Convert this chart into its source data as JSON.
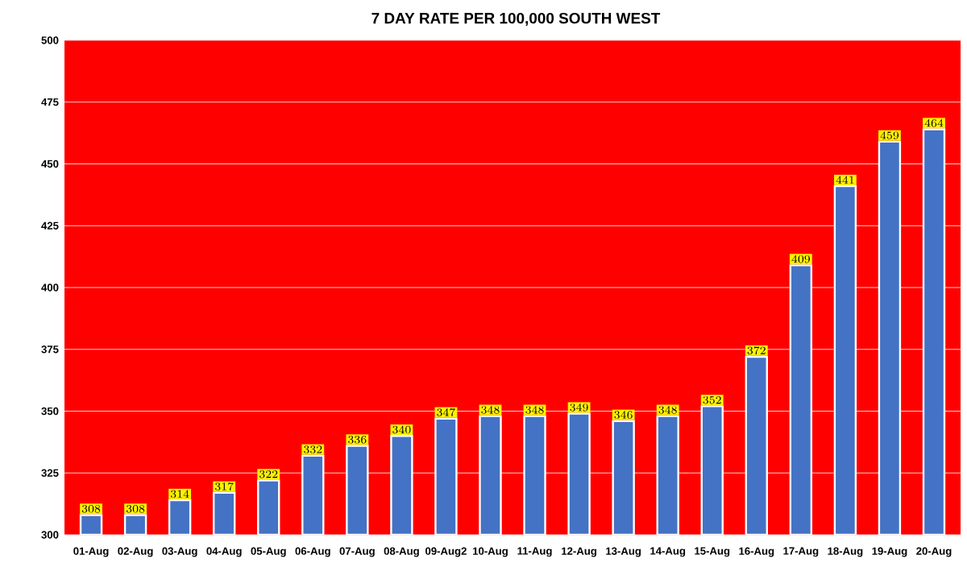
{
  "chart_data": {
    "type": "bar",
    "title": "7 DAY RATE PER 100,000 SOUTH WEST",
    "categories": [
      "01-Aug",
      "02-Aug",
      "03-Aug",
      "04-Aug",
      "05-Aug",
      "06-Aug",
      "07-Aug",
      "08-Aug",
      "09-Aug2",
      "10-Aug",
      "11-Aug",
      "12-Aug",
      "13-Aug",
      "14-Aug",
      "15-Aug",
      "16-Aug",
      "17-Aug",
      "18-Aug",
      "19-Aug",
      "20-Aug"
    ],
    "values": [
      308,
      308,
      314,
      317,
      322,
      332,
      336,
      340,
      347,
      348,
      348,
      349,
      346,
      348,
      352,
      372,
      409,
      441,
      459,
      464
    ],
    "color": "#4472c4",
    "ylim": [
      300,
      500
    ],
    "yticks": [
      300,
      325,
      350,
      375,
      400,
      425,
      450,
      475,
      500
    ],
    "grid": "y",
    "data_labels": true
  }
}
